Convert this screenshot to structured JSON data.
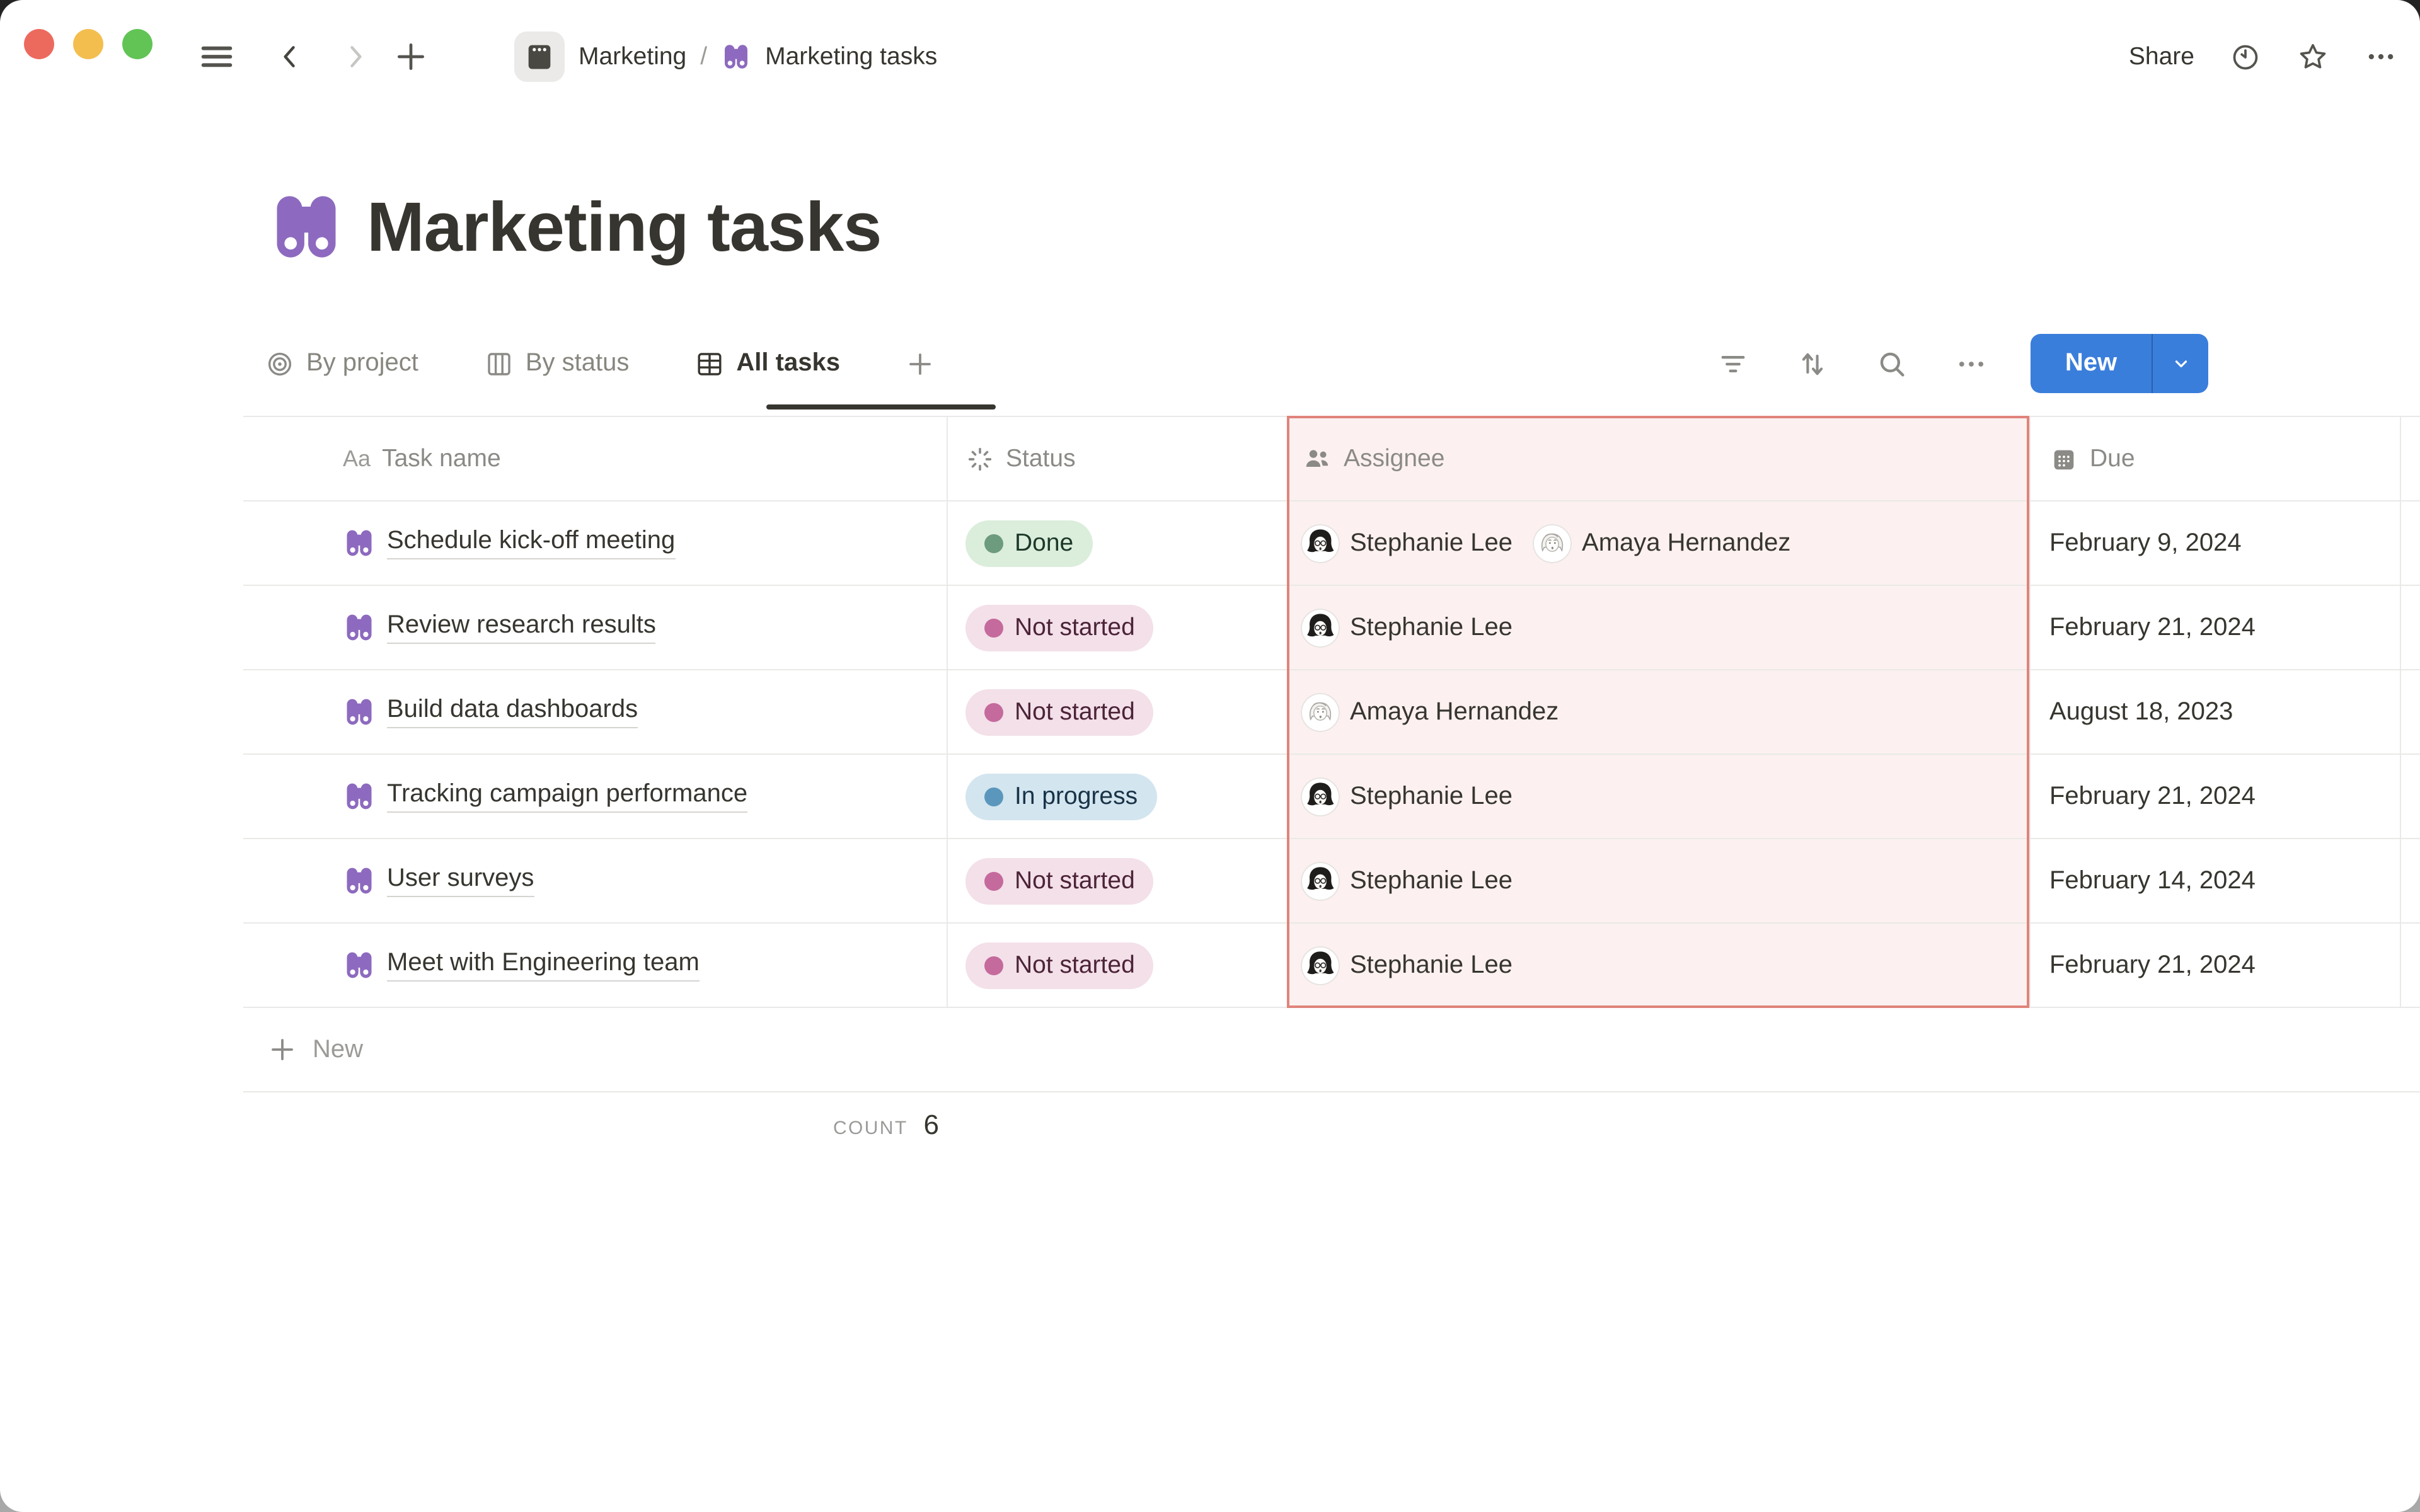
{
  "window": {
    "traffic_lights": [
      "close",
      "minimize",
      "zoom"
    ]
  },
  "topbar": {
    "breadcrumb": {
      "parent": "Marketing",
      "separator": "/",
      "current": "Marketing tasks"
    },
    "share_label": "Share",
    "icons": [
      "clock-icon",
      "star-icon",
      "more-icon"
    ]
  },
  "page": {
    "icon": "binoculars",
    "title": "Marketing tasks"
  },
  "views": {
    "tabs": [
      {
        "label": "By project",
        "icon": "target-icon",
        "active": false
      },
      {
        "label": "By status",
        "icon": "board-icon",
        "active": false
      },
      {
        "label": "All tasks",
        "icon": "table-icon",
        "active": true
      }
    ],
    "add_view_icon": "plus-icon"
  },
  "toolbar": {
    "icons": [
      "filter-icon",
      "sort-icon",
      "search-icon",
      "more-icon"
    ],
    "new_label": "New"
  },
  "table": {
    "columns": [
      {
        "label": "Task name",
        "icon": "Aa"
      },
      {
        "label": "Status",
        "icon": "spinner-icon"
      },
      {
        "label": "Assignee",
        "icon": "people-icon",
        "highlighted": true
      },
      {
        "label": "Due",
        "icon": "calendar-icon"
      }
    ],
    "rows": [
      {
        "task": "Schedule kick-off meeting",
        "status": {
          "label": "Done",
          "color": "green"
        },
        "assignees": [
          {
            "name": "Stephanie Lee",
            "avatar": "stephanie"
          },
          {
            "name": "Amaya Hernandez",
            "avatar": "amaya"
          }
        ],
        "due": "February 9, 2024"
      },
      {
        "task": "Review research results",
        "status": {
          "label": "Not started",
          "color": "pink"
        },
        "assignees": [
          {
            "name": "Stephanie Lee",
            "avatar": "stephanie"
          }
        ],
        "due": "February 21, 2024"
      },
      {
        "task": "Build data dashboards",
        "status": {
          "label": "Not started",
          "color": "pink"
        },
        "assignees": [
          {
            "name": "Amaya Hernandez",
            "avatar": "amaya"
          }
        ],
        "due": "August 18, 2023"
      },
      {
        "task": "Tracking campaign performance",
        "status": {
          "label": "In progress",
          "color": "blue"
        },
        "assignees": [
          {
            "name": "Stephanie Lee",
            "avatar": "stephanie"
          }
        ],
        "due": "February 21, 2024"
      },
      {
        "task": "User surveys",
        "status": {
          "label": "Not started",
          "color": "pink"
        },
        "assignees": [
          {
            "name": "Stephanie Lee",
            "avatar": "stephanie"
          }
        ],
        "due": "February 14, 2024"
      },
      {
        "task": "Meet with Engineering team",
        "status": {
          "label": "Not started",
          "color": "pink"
        },
        "assignees": [
          {
            "name": "Stephanie Lee",
            "avatar": "stephanie"
          }
        ],
        "due": "February 21, 2024"
      }
    ],
    "new_row_label": "New",
    "footer": {
      "count_label": "COUNT",
      "count_value": "6"
    }
  },
  "colors": {
    "text_dark": "#37352F",
    "text_muted": "#87867F",
    "accent_blue": "#3A7EDB",
    "page_icon_purple": "#8D6ABF",
    "status_green_bg": "#DBEDDB",
    "status_green_dot": "#6C9B7D",
    "status_green_text": "#1C3829",
    "status_pink_bg": "#F3E0E9",
    "status_pink_dot": "#C56A9C",
    "status_pink_text": "#4C2337",
    "status_blue_bg": "#D3E5EF",
    "status_blue_dot": "#5B97BD",
    "status_blue_text": "#183347",
    "highlight_bg": "#FCF1F0",
    "highlight_border": "#E0837B",
    "row_line": "#E9E9E7",
    "traffic_red": "#EC6A5D",
    "traffic_yellow": "#F4BE4F",
    "traffic_green": "#61C455"
  }
}
